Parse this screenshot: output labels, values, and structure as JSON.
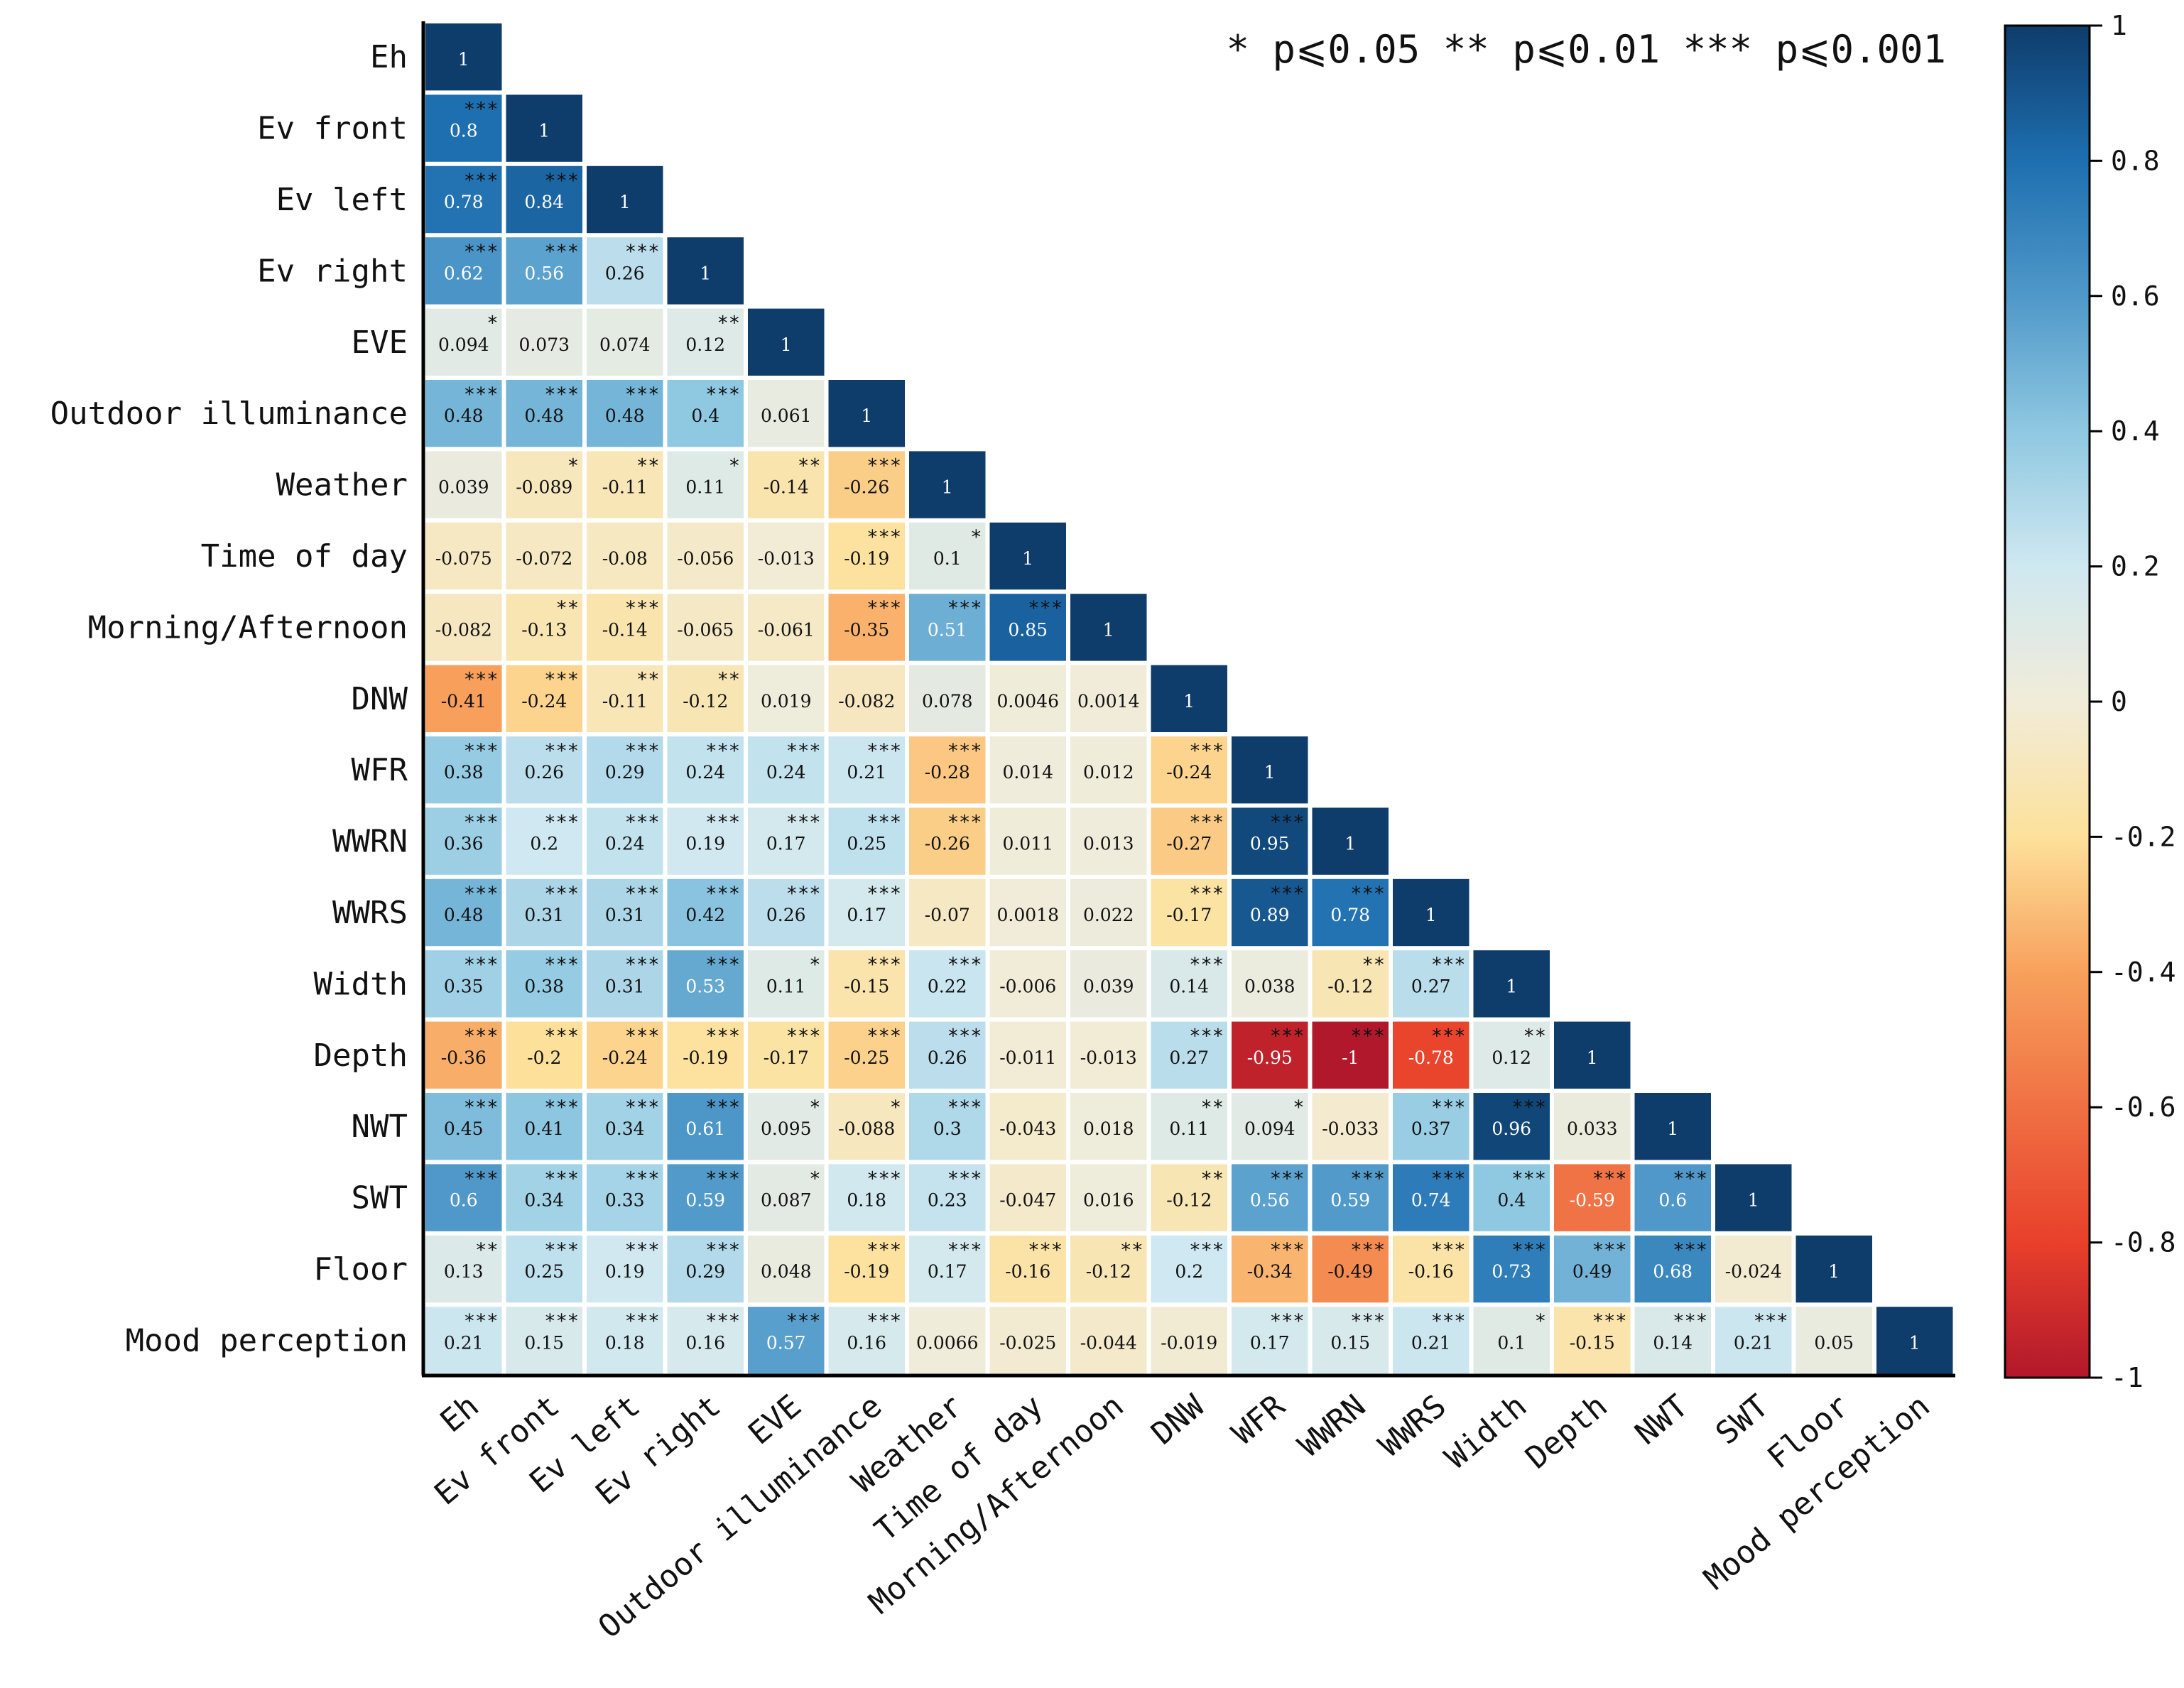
{
  "chart_data": {
    "type": "heatmap",
    "subtype": "lower-triangular correlation matrix",
    "significance_legend": "* p⩽0.05 ** p⩽0.01 *** p⩽0.001",
    "variables": [
      "Eh",
      "Ev front",
      "Ev left",
      "Ev right",
      "EVE",
      "Outdoor illuminance",
      "Weather",
      "Time of day",
      "Morning/Afternoon",
      "DNW",
      "WFR",
      "WWRN",
      "WWRS",
      "Width",
      "Depth",
      "NWT",
      "SWT",
      "Floor",
      "Mood perception"
    ],
    "colorbar": {
      "range": [
        -1,
        1
      ],
      "ticks": [
        "1",
        "0.8",
        "0.6",
        "0.4",
        "0.2",
        "0",
        "-0.2",
        "-0.4",
        "-0.6",
        "-0.8",
        "-1"
      ],
      "colors": {
        "-1": "#b2182b",
        "-0.8": "#e8402b",
        "-0.4": "#f7a15c",
        "-0.2": "#fde19b",
        "0": "#f1ecd9",
        "0.2": "#cfe8f1",
        "0.4": "#8fc8e1",
        "0.6": "#4f98c9",
        "0.8": "#1e6fb0",
        "1": "#0e3c6b"
      }
    },
    "rows": [
      {
        "label": "Eh",
        "cells": [
          {
            "v": "1",
            "s": ""
          }
        ]
      },
      {
        "label": "Ev front",
        "cells": [
          {
            "v": "0.8",
            "s": "***"
          },
          {
            "v": "1",
            "s": ""
          }
        ]
      },
      {
        "label": "Ev left",
        "cells": [
          {
            "v": "0.78",
            "s": "***"
          },
          {
            "v": "0.84",
            "s": "***"
          },
          {
            "v": "1",
            "s": ""
          }
        ]
      },
      {
        "label": "Ev right",
        "cells": [
          {
            "v": "0.62",
            "s": "***"
          },
          {
            "v": "0.56",
            "s": "***"
          },
          {
            "v": "0.26",
            "s": "***"
          },
          {
            "v": "1",
            "s": ""
          }
        ]
      },
      {
        "label": "EVE",
        "cells": [
          {
            "v": "0.094",
            "s": "*"
          },
          {
            "v": "0.073",
            "s": ""
          },
          {
            "v": "0.074",
            "s": ""
          },
          {
            "v": "0.12",
            "s": "**"
          },
          {
            "v": "1",
            "s": ""
          }
        ]
      },
      {
        "label": "Outdoor illuminance",
        "cells": [
          {
            "v": "0.48",
            "s": "***"
          },
          {
            "v": "0.48",
            "s": "***"
          },
          {
            "v": "0.48",
            "s": "***"
          },
          {
            "v": "0.4",
            "s": "***"
          },
          {
            "v": "0.061",
            "s": ""
          },
          {
            "v": "1",
            "s": ""
          }
        ]
      },
      {
        "label": "Weather",
        "cells": [
          {
            "v": "0.039",
            "s": ""
          },
          {
            "v": "-0.089",
            "s": "*"
          },
          {
            "v": "-0.11",
            "s": "**"
          },
          {
            "v": "0.11",
            "s": "*"
          },
          {
            "v": "-0.14",
            "s": "**"
          },
          {
            "v": "-0.26",
            "s": "***"
          },
          {
            "v": "1",
            "s": ""
          }
        ]
      },
      {
        "label": "Time of day",
        "cells": [
          {
            "v": "-0.075",
            "s": ""
          },
          {
            "v": "-0.072",
            "s": ""
          },
          {
            "v": "-0.08",
            "s": ""
          },
          {
            "v": "-0.056",
            "s": ""
          },
          {
            "v": "-0.013",
            "s": ""
          },
          {
            "v": "-0.19",
            "s": "***"
          },
          {
            "v": "0.1",
            "s": "*"
          },
          {
            "v": "1",
            "s": ""
          }
        ]
      },
      {
        "label": "Morning/Afternoon",
        "cells": [
          {
            "v": "-0.082",
            "s": ""
          },
          {
            "v": "-0.13",
            "s": "**"
          },
          {
            "v": "-0.14",
            "s": "***"
          },
          {
            "v": "-0.065",
            "s": ""
          },
          {
            "v": "-0.061",
            "s": ""
          },
          {
            "v": "-0.35",
            "s": "***"
          },
          {
            "v": "0.51",
            "s": "***"
          },
          {
            "v": "0.85",
            "s": "***"
          },
          {
            "v": "1",
            "s": ""
          }
        ]
      },
      {
        "label": "DNW",
        "cells": [
          {
            "v": "-0.41",
            "s": "***"
          },
          {
            "v": "-0.24",
            "s": "***"
          },
          {
            "v": "-0.11",
            "s": "**"
          },
          {
            "v": "-0.12",
            "s": "**"
          },
          {
            "v": "0.019",
            "s": ""
          },
          {
            "v": "-0.082",
            "s": ""
          },
          {
            "v": "0.078",
            "s": ""
          },
          {
            "v": "0.0046",
            "s": ""
          },
          {
            "v": "0.0014",
            "s": ""
          },
          {
            "v": "1",
            "s": ""
          }
        ]
      },
      {
        "label": "WFR",
        "cells": [
          {
            "v": "0.38",
            "s": "***"
          },
          {
            "v": "0.26",
            "s": "***"
          },
          {
            "v": "0.29",
            "s": "***"
          },
          {
            "v": "0.24",
            "s": "***"
          },
          {
            "v": "0.24",
            "s": "***"
          },
          {
            "v": "0.21",
            "s": "***"
          },
          {
            "v": "-0.28",
            "s": "***"
          },
          {
            "v": "0.014",
            "s": ""
          },
          {
            "v": "0.012",
            "s": ""
          },
          {
            "v": "-0.24",
            "s": "***"
          },
          {
            "v": "1",
            "s": ""
          }
        ]
      },
      {
        "label": "WWRN",
        "cells": [
          {
            "v": "0.36",
            "s": "***"
          },
          {
            "v": "0.2",
            "s": "***"
          },
          {
            "v": "0.24",
            "s": "***"
          },
          {
            "v": "0.19",
            "s": "***"
          },
          {
            "v": "0.17",
            "s": "***"
          },
          {
            "v": "0.25",
            "s": "***"
          },
          {
            "v": "-0.26",
            "s": "***"
          },
          {
            "v": "0.011",
            "s": ""
          },
          {
            "v": "0.013",
            "s": ""
          },
          {
            "v": "-0.27",
            "s": "***"
          },
          {
            "v": "0.95",
            "s": "***"
          },
          {
            "v": "1",
            "s": ""
          }
        ]
      },
      {
        "label": "WWRS",
        "cells": [
          {
            "v": "0.48",
            "s": "***"
          },
          {
            "v": "0.31",
            "s": "***"
          },
          {
            "v": "0.31",
            "s": "***"
          },
          {
            "v": "0.42",
            "s": "***"
          },
          {
            "v": "0.26",
            "s": "***"
          },
          {
            "v": "0.17",
            "s": "***"
          },
          {
            "v": "-0.07",
            "s": ""
          },
          {
            "v": "0.0018",
            "s": ""
          },
          {
            "v": "0.022",
            "s": ""
          },
          {
            "v": "-0.17",
            "s": "***"
          },
          {
            "v": "0.89",
            "s": "***"
          },
          {
            "v": "0.78",
            "s": "***"
          },
          {
            "v": "1",
            "s": ""
          }
        ]
      },
      {
        "label": "Width",
        "cells": [
          {
            "v": "0.35",
            "s": "***"
          },
          {
            "v": "0.38",
            "s": "***"
          },
          {
            "v": "0.31",
            "s": "***"
          },
          {
            "v": "0.53",
            "s": "***"
          },
          {
            "v": "0.11",
            "s": "*"
          },
          {
            "v": "-0.15",
            "s": "***"
          },
          {
            "v": "0.22",
            "s": "***"
          },
          {
            "v": "-0.006",
            "s": ""
          },
          {
            "v": "0.039",
            "s": ""
          },
          {
            "v": "0.14",
            "s": "***"
          },
          {
            "v": "0.038",
            "s": ""
          },
          {
            "v": "-0.12",
            "s": "**"
          },
          {
            "v": "0.27",
            "s": "***"
          },
          {
            "v": "1",
            "s": ""
          }
        ]
      },
      {
        "label": "Depth",
        "cells": [
          {
            "v": "-0.36",
            "s": "***"
          },
          {
            "v": "-0.2",
            "s": "***"
          },
          {
            "v": "-0.24",
            "s": "***"
          },
          {
            "v": "-0.19",
            "s": "***"
          },
          {
            "v": "-0.17",
            "s": "***"
          },
          {
            "v": "-0.25",
            "s": "***"
          },
          {
            "v": "0.26",
            "s": "***"
          },
          {
            "v": "-0.011",
            "s": ""
          },
          {
            "v": "-0.013",
            "s": ""
          },
          {
            "v": "0.27",
            "s": "***"
          },
          {
            "v": "-0.95",
            "s": "***"
          },
          {
            "v": "-1",
            "s": "***"
          },
          {
            "v": "-0.78",
            "s": "***"
          },
          {
            "v": "0.12",
            "s": "**"
          },
          {
            "v": "1",
            "s": ""
          }
        ]
      },
      {
        "label": "NWT",
        "cells": [
          {
            "v": "0.45",
            "s": "***"
          },
          {
            "v": "0.41",
            "s": "***"
          },
          {
            "v": "0.34",
            "s": "***"
          },
          {
            "v": "0.61",
            "s": "***"
          },
          {
            "v": "0.095",
            "s": "*"
          },
          {
            "v": "-0.088",
            "s": "*"
          },
          {
            "v": "0.3",
            "s": "***"
          },
          {
            "v": "-0.043",
            "s": ""
          },
          {
            "v": "0.018",
            "s": ""
          },
          {
            "v": "0.11",
            "s": "**"
          },
          {
            "v": "0.094",
            "s": "*"
          },
          {
            "v": "-0.033",
            "s": ""
          },
          {
            "v": "0.37",
            "s": "***"
          },
          {
            "v": "0.96",
            "s": "***"
          },
          {
            "v": "0.033",
            "s": ""
          },
          {
            "v": "1",
            "s": ""
          }
        ]
      },
      {
        "label": "SWT",
        "cells": [
          {
            "v": "0.6",
            "s": "***"
          },
          {
            "v": "0.34",
            "s": "***"
          },
          {
            "v": "0.33",
            "s": "***"
          },
          {
            "v": "0.59",
            "s": "***"
          },
          {
            "v": "0.087",
            "s": "*"
          },
          {
            "v": "0.18",
            "s": "***"
          },
          {
            "v": "0.23",
            "s": "***"
          },
          {
            "v": "-0.047",
            "s": ""
          },
          {
            "v": "0.016",
            "s": ""
          },
          {
            "v": "-0.12",
            "s": "**"
          },
          {
            "v": "0.56",
            "s": "***"
          },
          {
            "v": "0.59",
            "s": "***"
          },
          {
            "v": "0.74",
            "s": "***"
          },
          {
            "v": "0.4",
            "s": "***"
          },
          {
            "v": "-0.59",
            "s": "***"
          },
          {
            "v": "0.6",
            "s": "***"
          },
          {
            "v": "1",
            "s": ""
          }
        ]
      },
      {
        "label": "Floor",
        "cells": [
          {
            "v": "0.13",
            "s": "**"
          },
          {
            "v": "0.25",
            "s": "***"
          },
          {
            "v": "0.19",
            "s": "***"
          },
          {
            "v": "0.29",
            "s": "***"
          },
          {
            "v": "0.048",
            "s": ""
          },
          {
            "v": "-0.19",
            "s": "***"
          },
          {
            "v": "0.17",
            "s": "***"
          },
          {
            "v": "-0.16",
            "s": "***"
          },
          {
            "v": "-0.12",
            "s": "**"
          },
          {
            "v": "0.2",
            "s": "***"
          },
          {
            "v": "-0.34",
            "s": "***"
          },
          {
            "v": "-0.49",
            "s": "***"
          },
          {
            "v": "-0.16",
            "s": "***"
          },
          {
            "v": "0.73",
            "s": "***"
          },
          {
            "v": "0.49",
            "s": "***"
          },
          {
            "v": "0.68",
            "s": "***"
          },
          {
            "v": "-0.024",
            "s": ""
          },
          {
            "v": "1",
            "s": ""
          }
        ]
      },
      {
        "label": "Mood perception",
        "cells": [
          {
            "v": "0.21",
            "s": "***"
          },
          {
            "v": "0.15",
            "s": "***"
          },
          {
            "v": "0.18",
            "s": "***"
          },
          {
            "v": "0.16",
            "s": "***"
          },
          {
            "v": "0.57",
            "s": "***"
          },
          {
            "v": "0.16",
            "s": "***"
          },
          {
            "v": "0.0066",
            "s": ""
          },
          {
            "v": "-0.025",
            "s": ""
          },
          {
            "v": "-0.044",
            "s": ""
          },
          {
            "v": "-0.019",
            "s": ""
          },
          {
            "v": "0.17",
            "s": "***"
          },
          {
            "v": "0.15",
            "s": "***"
          },
          {
            "v": "0.21",
            "s": "***"
          },
          {
            "v": "0.1",
            "s": "*"
          },
          {
            "v": "-0.15",
            "s": "***"
          },
          {
            "v": "0.14",
            "s": "***"
          },
          {
            "v": "0.21",
            "s": "***"
          },
          {
            "v": "0.05",
            "s": ""
          },
          {
            "v": "1",
            "s": ""
          }
        ]
      }
    ]
  }
}
